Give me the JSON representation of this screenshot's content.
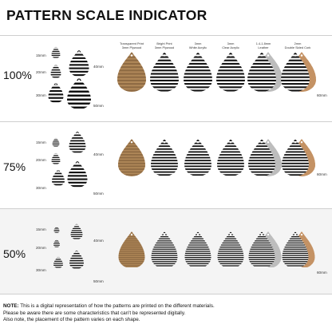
{
  "title": "PATTERN SCALE INDICATOR",
  "columns": [
    {
      "line1": "Transparent Print",
      "line2": "3mm Plywood"
    },
    {
      "line1": "Bright Print",
      "line2": "3mm Plywood"
    },
    {
      "line1": "3mm",
      "line2": "White Acrylic"
    },
    {
      "line1": "3mm",
      "line2": "Clear Acrylic"
    },
    {
      "line1": "1.4-1.8mm",
      "line2": "Leather"
    },
    {
      "line1": "2mm",
      "line2": "Double Sided Cork"
    }
  ],
  "sections": [
    {
      "scale": "100%",
      "sizes": {
        "s15": "15mm",
        "s20": "20mm",
        "s30": "30mm",
        "s40": "40mm",
        "s50": "50mm",
        "s60": "60mm"
      }
    },
    {
      "scale": "75%",
      "sizes": {
        "s15": "15mm",
        "s20": "20mm",
        "s30": "30mm",
        "s40": "40mm",
        "s50": "50mm",
        "s60": "60mm"
      }
    },
    {
      "scale": "50%",
      "sizes": {
        "s15": "15mm",
        "s20": "20mm",
        "s30": "30mm",
        "s40": "40mm",
        "s50": "50mm",
        "s60": "60mm"
      }
    }
  ],
  "materials": [
    {
      "name": "plywood-transparent",
      "fill": "#b08859",
      "stripe": "#8e6a43"
    },
    {
      "name": "plywood-bright",
      "fill": "#ffffff",
      "stripe": "#111111"
    },
    {
      "name": "white-acrylic",
      "fill": "#ffffff",
      "stripe": "#111111"
    },
    {
      "name": "clear-acrylic",
      "fill": "#ffffff",
      "stripe": "#111111"
    },
    {
      "name": "leather",
      "fill": "#b9b9b9",
      "stripe": "#111111"
    },
    {
      "name": "cork",
      "fill": "#c49264",
      "stripe": "#a87a50"
    }
  ],
  "note": {
    "label": "NOTE:",
    "line1": " This is a digital representation of how the patterns are printed on the different materials.",
    "line2": "Please be aware there are some characteristics that can't be represented digitally.",
    "line3": "Also note, the placement of the pattern varies on each shape."
  }
}
